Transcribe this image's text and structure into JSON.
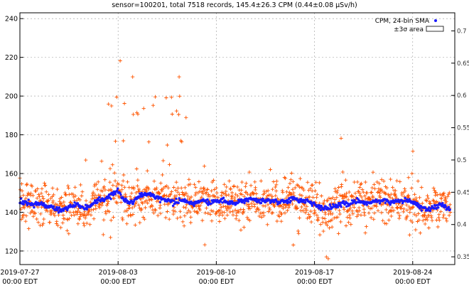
{
  "chart_data": {
    "type": "scatter",
    "title": "sensor=100201, total 7518 records, 145.4±26.3 CPM (0.44±0.08 µSv/h)",
    "xlabel": "",
    "ylabel": "",
    "y2label": "",
    "x_start": "2019-07-27",
    "x_end": "2019-08-27",
    "xlim_days": [
      0,
      31
    ],
    "ylim": [
      113,
      243
    ],
    "y2lim": [
      0.338,
      0.728
    ],
    "grid": true,
    "legend_position": "top-right",
    "y_ticks": [
      "120",
      "140",
      "160",
      "180",
      "200",
      "220",
      "240"
    ],
    "y_tick_values": [
      120,
      140,
      160,
      180,
      200,
      220,
      240
    ],
    "y2_ticks": [
      "0.35",
      "0.4",
      "0.45",
      "0.5",
      "0.55",
      "0.6",
      "0.65",
      "0.7"
    ],
    "y2_tick_values": [
      0.35,
      0.4,
      0.45,
      0.5,
      0.55,
      0.6,
      0.65,
      0.7
    ],
    "x_ticks": [
      {
        "day": 0,
        "date": "2019-07-27",
        "time": "00:00 EDT"
      },
      {
        "day": 7,
        "date": "2019-08-03",
        "time": "00:00 EDT"
      },
      {
        "day": 14,
        "date": "2019-08-10",
        "time": "00:00 EDT"
      },
      {
        "day": 21,
        "date": "2019-08-17",
        "time": "00:00 EDT"
      },
      {
        "day": 28,
        "date": "2019-08-24",
        "time": "00:00 EDT"
      }
    ],
    "series": [
      {
        "name": "CPM, 24-bin SMA",
        "marker": "dot",
        "color": "#1a1aff",
        "mean": 145.4,
        "x_days": [
          0,
          0.5,
          1,
          1.5,
          2,
          2.5,
          3,
          3.5,
          4,
          4.5,
          5,
          5.5,
          6,
          6.5,
          7,
          7.5,
          8,
          8.5,
          9,
          9.5,
          10,
          10.5,
          11,
          11.5,
          12,
          12.5,
          13,
          13.5,
          14,
          14.5,
          15,
          15.5,
          16,
          16.5,
          17,
          17.5,
          18,
          18.5,
          19,
          19.5,
          20,
          20.5,
          21,
          21.5,
          22,
          22.5,
          23,
          23.5,
          24,
          24.5,
          25,
          25.5,
          26,
          26.5,
          27,
          27.5,
          28,
          28.5,
          29,
          29.5,
          30,
          30.5
        ],
        "y": [
          146,
          145,
          144,
          144,
          143,
          142,
          141,
          143,
          144,
          142,
          143,
          146,
          147,
          149,
          151,
          146,
          145,
          148,
          150,
          149,
          147,
          146,
          145,
          146,
          145,
          145,
          146,
          145,
          146,
          146,
          145,
          145,
          146,
          147,
          146,
          146,
          146,
          145,
          146,
          147,
          146,
          146,
          144,
          142,
          142,
          143,
          145,
          144,
          146,
          145,
          145,
          146,
          146,
          145,
          146,
          146,
          145,
          143,
          141,
          143,
          144,
          142
        ]
      },
      {
        "name": "±3σ area",
        "marker": "box",
        "color": "#ffffff"
      }
    ],
    "raw_points_series": {
      "name": "",
      "marker": "plus",
      "color": "#ff5500",
      "count": 7518
    }
  }
}
